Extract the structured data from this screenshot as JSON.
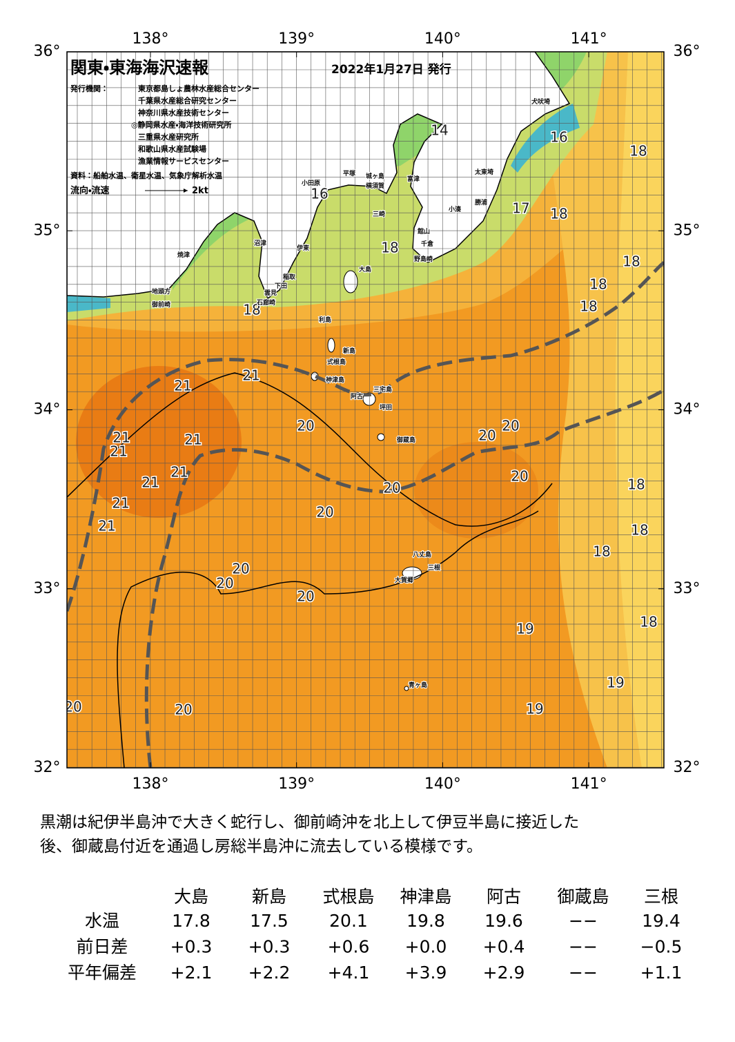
{
  "header": {
    "title": "関東・東海海沢速報",
    "date": "2022年1月27日 発行",
    "issuer_label": "発行機関：",
    "issuers": [
      "東京都島しょ農林水産総合センター",
      "千葉県水産総合研究センター",
      "神奈川県水産技術センター",
      "◎静岡県水産・海洋技術研究所",
      "三重県水産研究所",
      "和歌山県水産試験場",
      "漁業情報サービスセンター"
    ],
    "sources": "資料：船舶水温、衛星水温、気象庁解析水温",
    "current_label": "流向・流速",
    "current_scale": "2kt"
  },
  "map": {
    "lon_ticks": [
      {
        "value": 138,
        "label": "138°"
      },
      {
        "value": 139,
        "label": "139°"
      },
      {
        "value": 140,
        "label": "140°"
      },
      {
        "value": 141,
        "label": "141°"
      }
    ],
    "lat_ticks": [
      {
        "value": 36,
        "label": "36°"
      },
      {
        "value": 35,
        "label": "35°"
      },
      {
        "value": 34,
        "label": "34°"
      },
      {
        "value": 33,
        "label": "33°"
      },
      {
        "value": 32,
        "label": "32°"
      }
    ],
    "isotherm_labels": [
      14,
      16,
      18,
      16,
      17,
      18,
      18,
      18,
      18,
      18,
      18,
      21,
      21,
      21,
      21,
      21,
      21,
      21,
      21,
      21,
      20,
      20,
      20,
      20,
      20,
      20,
      20,
      20,
      20,
      18,
      18,
      18,
      18,
      19,
      19,
      19,
      20,
      20
    ],
    "place_names": [
      "犬吠埼",
      "太東埼",
      "小湊",
      "勝浦",
      "富津",
      "館山",
      "千倉",
      "野島崎",
      "小田原",
      "平塚",
      "横須賀",
      "城ヶ島",
      "三崎",
      "沼津",
      "伊東",
      "焼津",
      "稲取",
      "下田",
      "雲見",
      "石廊崎",
      "地頭方",
      "御前崎",
      "大島",
      "利島",
      "新島",
      "式根島",
      "神津島",
      "阿古",
      "三宅島",
      "坪田",
      "御蔵島",
      "八丈島",
      "三根",
      "大賀郷",
      "青ヶ島"
    ]
  },
  "description": [
    "黒潮は紀伊半島沖で大きく蛇行し、御前崎沖を北上して伊豆半島に接近した",
    "後、御蔵島付近を通過し房総半島沖に流去している模様です。"
  ],
  "table": {
    "columns": [
      "大島",
      "新島",
      "式根島",
      "神津島",
      "阿古",
      "御蔵島",
      "三根"
    ],
    "rows": [
      {
        "label": "水温",
        "values": [
          "17.8",
          "17.5",
          "20.1",
          "19.8",
          "19.6",
          "−−",
          "19.4"
        ]
      },
      {
        "label": "前日差",
        "values": [
          "+0.3",
          "+0.3",
          "+0.6",
          "+0.0",
          "+0.4",
          "−−",
          "−0.5"
        ]
      },
      {
        "label": "平年偏差",
        "values": [
          "+2.1",
          "+2.2",
          "+4.1",
          "+3.9",
          "+2.9",
          "−−",
          "+1.1"
        ]
      }
    ]
  }
}
